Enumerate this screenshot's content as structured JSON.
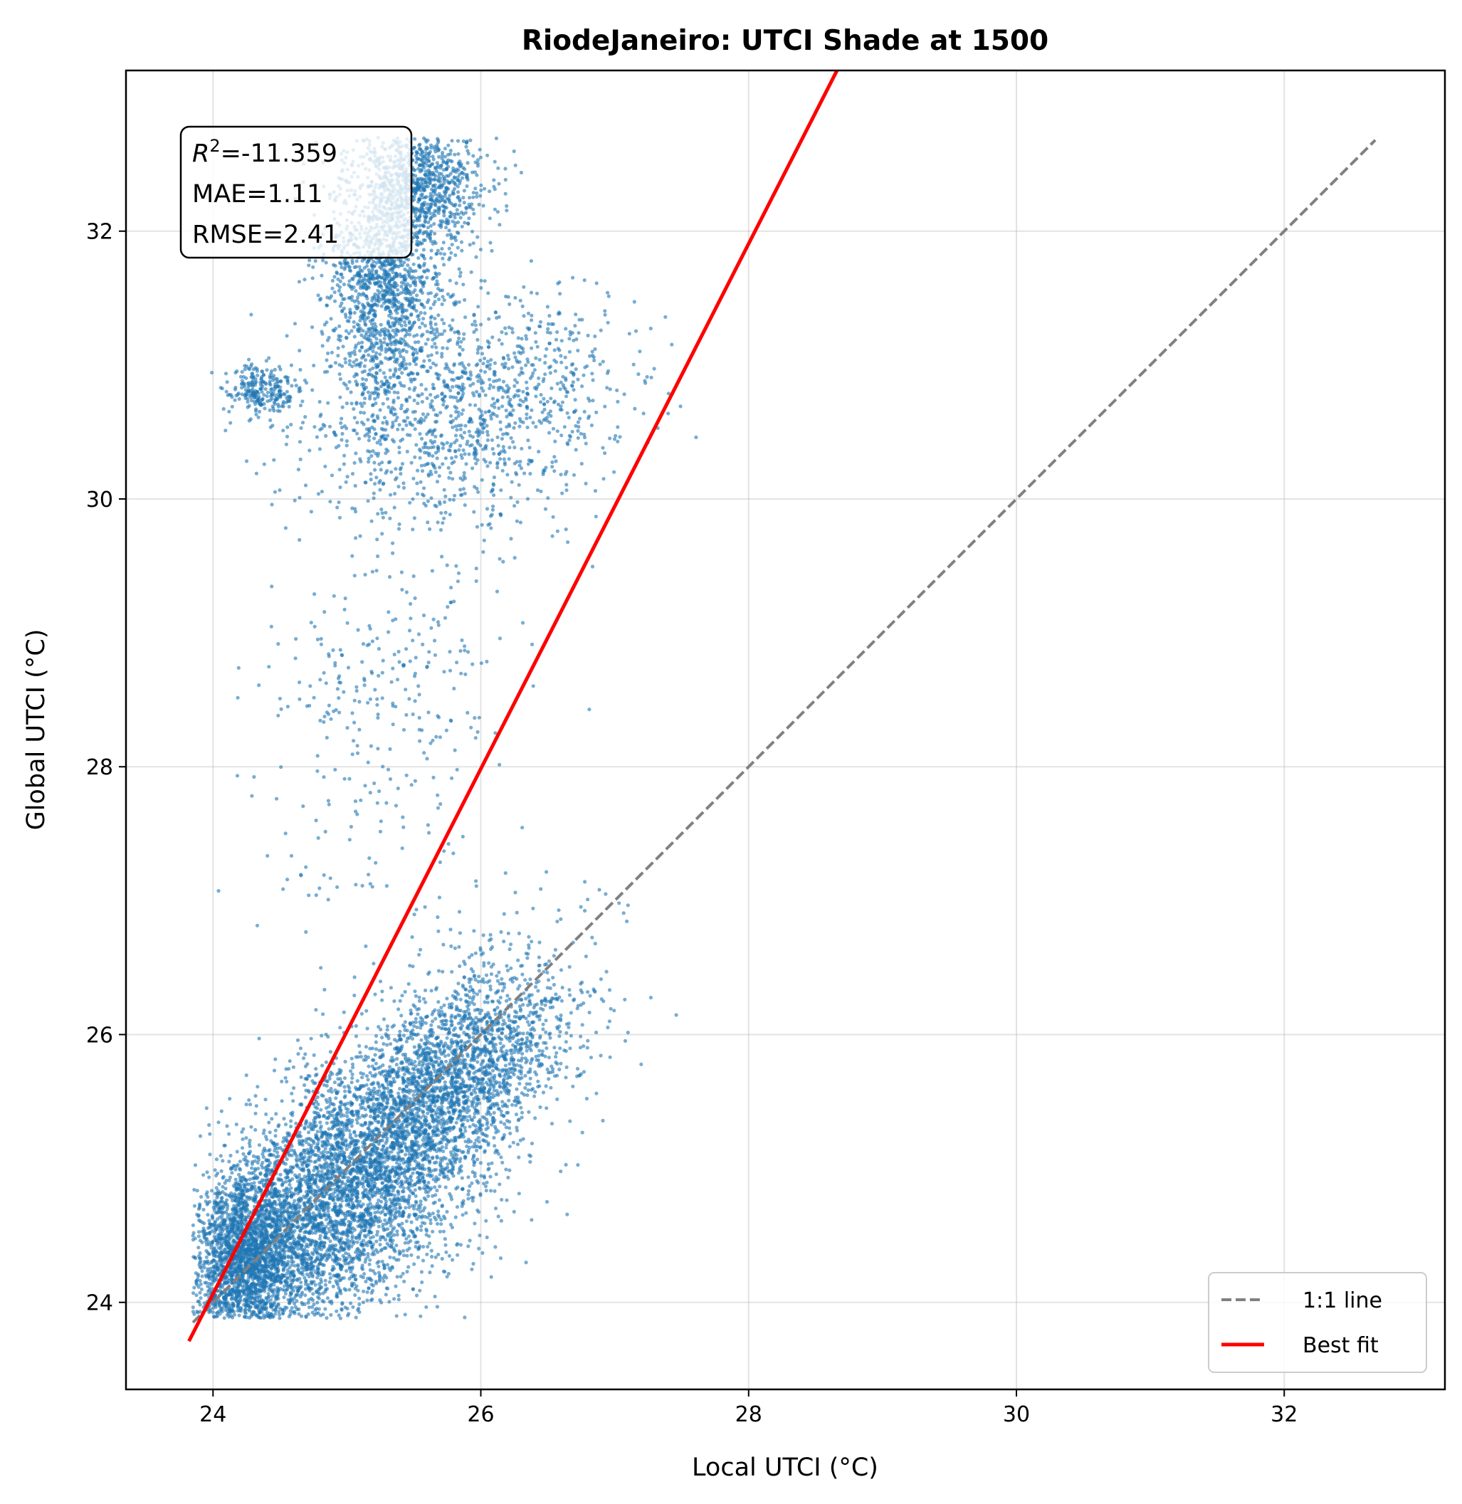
{
  "chart_data": {
    "type": "scatter",
    "title": "RiodeJaneiro: UTCI Shade at 1500",
    "xlabel": "Local UTCI (°C)",
    "ylabel": "Global UTCI (°C)",
    "xlim": [
      23.35,
      33.2
    ],
    "ylim": [
      23.35,
      33.2
    ],
    "xticks": [
      24,
      26,
      28,
      30,
      32
    ],
    "yticks": [
      24,
      26,
      28,
      30,
      32
    ],
    "xtick_labels": [
      "24",
      "26",
      "28",
      "30",
      "32"
    ],
    "ytick_labels": [
      "24",
      "26",
      "28",
      "30",
      "32"
    ],
    "grid": true,
    "stats": {
      "r2_symbol": "R",
      "r2_superscript": "2",
      "r2_value": "=-11.359",
      "mae": "MAE=1.11",
      "rmse": "RMSE=2.41"
    },
    "legend": {
      "position": "lower-right",
      "entries": [
        "1:1 line",
        "Best fit"
      ]
    },
    "series": [
      {
        "kind": "scatter",
        "color": "#1f77b4",
        "clusters": [
          {
            "cx": 24.85,
            "cy": 24.7,
            "spread_along": 0.75,
            "spread_across": 0.38,
            "n": 5200
          },
          {
            "cx": 25.8,
            "cy": 25.7,
            "spread_along": 0.55,
            "spread_across": 0.3,
            "n": 2200
          },
          {
            "cx": 24.25,
            "cy": 24.35,
            "sx": 0.16,
            "sy": 0.28,
            "n": 1500
          },
          {
            "cx": 25.3,
            "cy": 31.6,
            "sx": 0.22,
            "sy": 0.45,
            "n": 1400
          },
          {
            "cx": 25.55,
            "cy": 32.35,
            "sx": 0.25,
            "sy": 0.22,
            "n": 900
          },
          {
            "cx": 25.7,
            "cy": 30.55,
            "sx": 0.55,
            "sy": 0.4,
            "n": 900
          },
          {
            "cx": 24.35,
            "cy": 30.8,
            "sx": 0.14,
            "sy": 0.1,
            "n": 250
          },
          {
            "cx": 26.4,
            "cy": 30.9,
            "sx": 0.45,
            "sy": 0.35,
            "n": 350
          },
          {
            "cx": 25.3,
            "cy": 28.6,
            "sx": 0.45,
            "sy": 0.55,
            "n": 260
          },
          {
            "cx": 25.2,
            "cy": 27.2,
            "sx": 0.5,
            "sy": 0.5,
            "n": 60
          }
        ]
      },
      {
        "name": "1:1 line",
        "kind": "line",
        "color": "#808080",
        "dash": true,
        "x": [
          23.85,
          32.68
        ],
        "y": [
          23.85,
          32.68
        ]
      },
      {
        "name": "Best fit",
        "kind": "line",
        "color": "#ff0000",
        "x": [
          23.82,
          28.66
        ],
        "y": [
          23.71,
          33.2
        ]
      }
    ]
  }
}
